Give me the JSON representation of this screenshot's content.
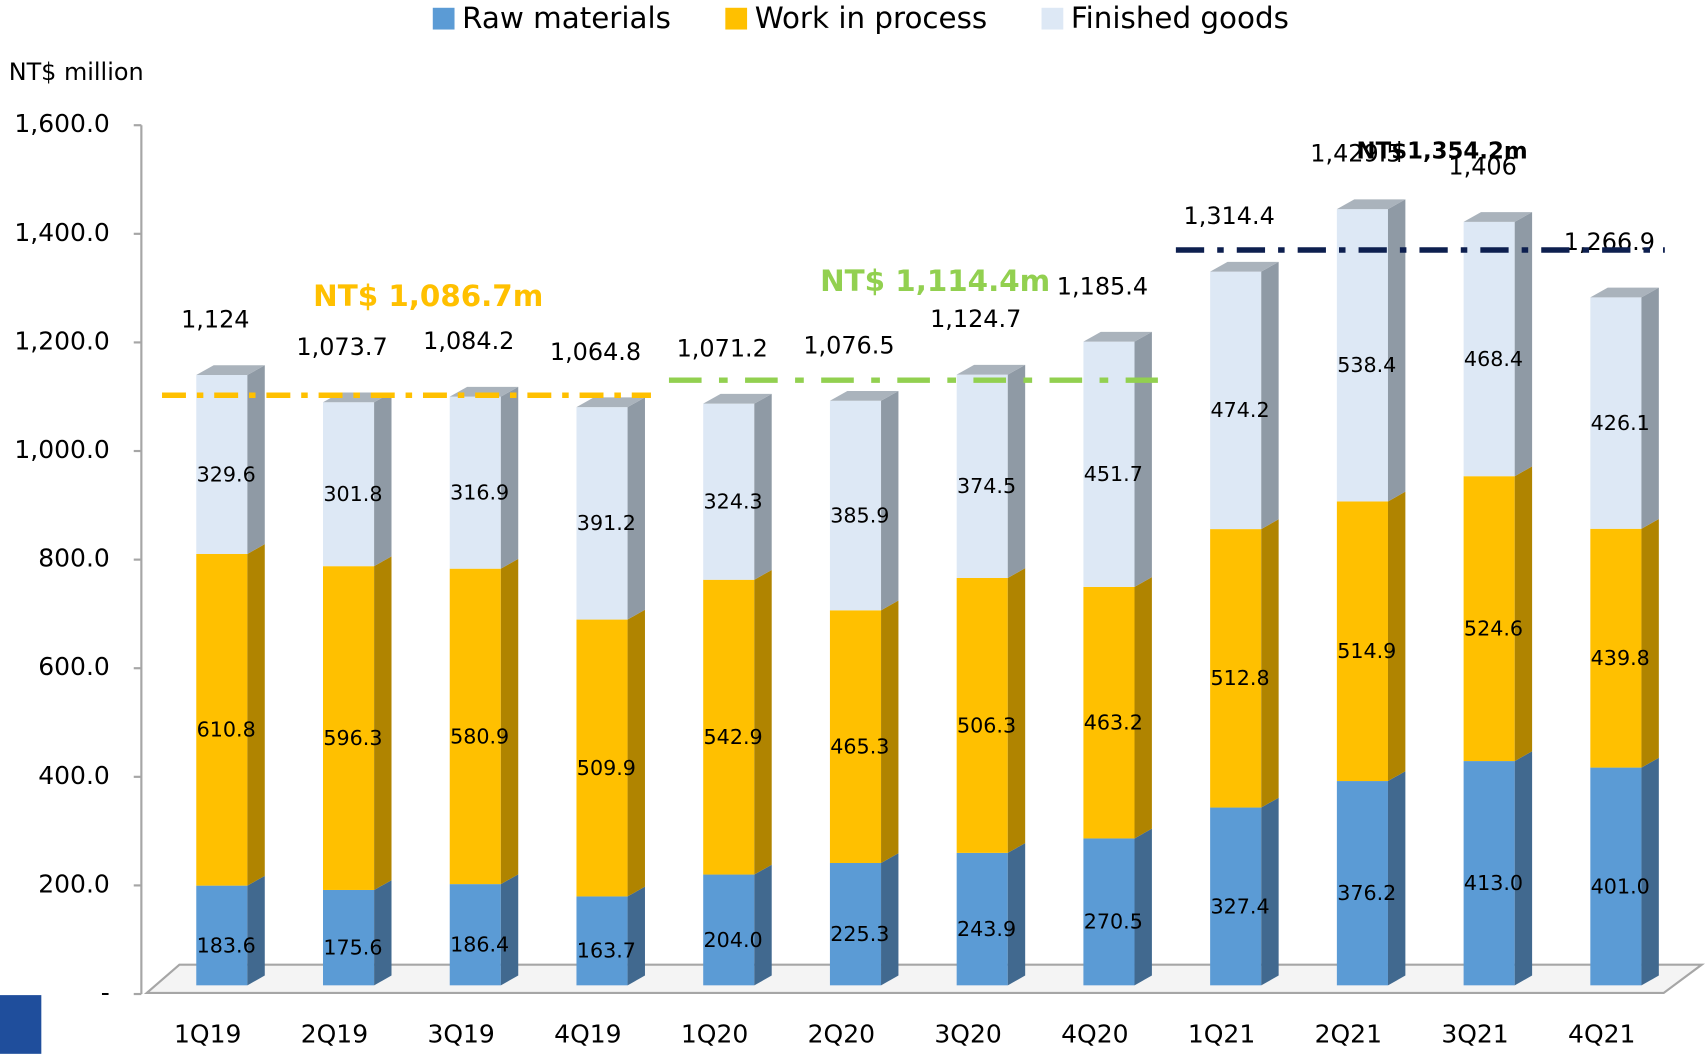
{
  "chart_data": {
    "type": "stacked_bar_3d",
    "y_axis_label": "NT$ million",
    "categories": [
      "1Q19",
      "2Q19",
      "3Q19",
      "4Q19",
      "1Q20",
      "2Q20",
      "3Q20",
      "4Q20",
      "1Q21",
      "2Q21",
      "3Q21",
      "4Q21"
    ],
    "ylim": [
      0,
      1600
    ],
    "yticks": [
      {
        "value": 0,
        "label": "-"
      },
      {
        "value": 200,
        "label": "200.0"
      },
      {
        "value": 400,
        "label": "400.0"
      },
      {
        "value": 600,
        "label": "600.0"
      },
      {
        "value": 800,
        "label": "800.0"
      },
      {
        "value": 1000,
        "label": "1,000.0"
      },
      {
        "value": 1200,
        "label": "1,200.0"
      },
      {
        "value": 1400,
        "label": "1,400.0"
      },
      {
        "value": 1600,
        "label": "1,600.0"
      }
    ],
    "series": [
      {
        "name": "Raw materials",
        "color": "#5b9bd5",
        "side_color": "#41698f",
        "values": [
          183.6,
          175.6,
          186.4,
          163.7,
          204.0,
          225.3,
          243.9,
          270.5,
          327.4,
          376.2,
          413.0,
          401.0
        ],
        "value_labels": [
          "183.6",
          "175.6",
          "186.4",
          "163.7",
          "204.0",
          "225.3",
          "243.9",
          "270.5",
          "327.4",
          "376.2",
          "413.0",
          "401.0"
        ]
      },
      {
        "name": "Work in process",
        "color": "#ffc000",
        "side_color": "#b08400",
        "values": [
          610.8,
          596.3,
          580.9,
          509.9,
          542.9,
          465.3,
          506.3,
          463.2,
          512.8,
          514.9,
          524.6,
          439.8
        ],
        "value_labels": [
          "610.8",
          "596.3",
          "580.9",
          "509.9",
          "542.9",
          "465.3",
          "506.3",
          "463.2",
          "512.8",
          "514.9",
          "524.6",
          "439.8"
        ]
      },
      {
        "name": "Finished goods",
        "color": "#dde8f5",
        "side_color": "#8f9aa5",
        "values": [
          329.6,
          301.8,
          316.9,
          391.2,
          324.3,
          385.9,
          374.5,
          451.7,
          474.2,
          538.4,
          468.4,
          426.1
        ],
        "value_labels": [
          "329.6",
          "301.8",
          "316.9",
          "391.2",
          "324.3",
          "385.9",
          "374.5",
          "451.7",
          "474.2",
          "538.4",
          "468.4",
          "426.1"
        ]
      }
    ],
    "totals": {
      "values": [
        1124,
        1073.7,
        1084.2,
        1064.8,
        1071.2,
        1076.5,
        1124.7,
        1185.4,
        1314.4,
        1429.5,
        1406,
        1266.9
      ],
      "value_labels": [
        "1,124",
        "1,073.7",
        "1,084.2",
        "1,064.8",
        "1,071.2",
        "1,076.5",
        "1,124.7",
        "1,185.4",
        "1,314.4",
        "1,429.5",
        "1,406",
        "1,266.9"
      ]
    },
    "reference_lines": [
      {
        "label": "NT$ 1,086.7m",
        "value": 1086.7,
        "color": "#ffc000",
        "label_color": "#ffc000",
        "start": "1Q19",
        "end": "4Q19"
      },
      {
        "label": "NT$ 1,114.4m",
        "value": 1114.4,
        "color": "#92d050",
        "label_color": "#92d050",
        "start": "1Q20",
        "end": "4Q20"
      },
      {
        "label": "NT$1,354.2m",
        "value": 1354.2,
        "color": "#0d1f4f",
        "label_color": "#000000",
        "start": "1Q21",
        "end": "4Q21"
      }
    ]
  }
}
